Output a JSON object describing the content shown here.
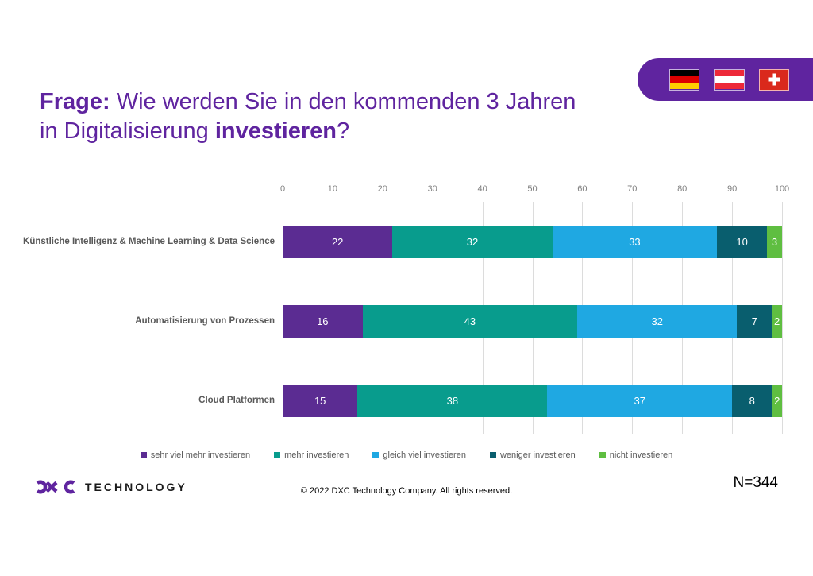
{
  "banner": {
    "color": "#5F249F",
    "flags": [
      "germany-flag",
      "austria-flag",
      "switzerland-flag"
    ]
  },
  "title": {
    "frage": "Frage:",
    "line1_rest": " Wie werden Sie in den kommenden 3 Jahren",
    "line2_start": "in Digitalisierung ",
    "invest_word": "investieren",
    "question_mark": "?"
  },
  "chart_data": {
    "type": "bar",
    "stacked": true,
    "orientation": "horizontal",
    "categories": [
      "Künstliche Intelligenz & Machine Learning & Data Science",
      "Automatisierung von Prozessen",
      "Cloud Platformen"
    ],
    "series": [
      {
        "name": "sehr viel mehr investieren",
        "color": "#5B2C92",
        "values": [
          22,
          16,
          15
        ]
      },
      {
        "name": "mehr investieren",
        "color": "#089C8D",
        "values": [
          32,
          43,
          38
        ]
      },
      {
        "name": "gleich viel investieren",
        "color": "#1FA8E2",
        "values": [
          33,
          32,
          37
        ]
      },
      {
        "name": "weniger investieren",
        "color": "#095E6E",
        "values": [
          10,
          7,
          8
        ]
      },
      {
        "name": "nicht investieren",
        "color": "#5FBE41",
        "values": [
          3,
          2,
          2
        ]
      }
    ],
    "x_ticks": [
      0,
      10,
      20,
      30,
      40,
      50,
      60,
      70,
      80,
      90,
      100
    ],
    "xlim": [
      0,
      100
    ],
    "grid": true,
    "legend_position": "bottom",
    "value_labels": "inside-white"
  },
  "footer": {
    "logo_text": "TECHNOLOGY",
    "copyright": "© 2022 DXC Technology Company. All rights reserved.",
    "sample_size": "N=344"
  }
}
